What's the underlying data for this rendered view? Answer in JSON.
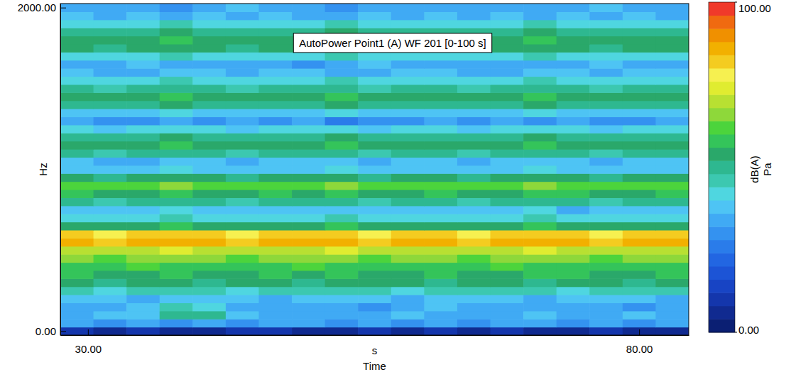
{
  "chart_data": {
    "type": "heatmap",
    "title": "AutoPower Point1 (A) WF 201 [0-100 s]",
    "x_label": "Time",
    "x_unit": "s",
    "y_label": "Hz",
    "x": [
      29,
      32,
      35,
      38,
      41,
      44,
      47,
      50,
      53,
      56,
      59,
      62,
      65,
      68,
      71,
      74,
      77,
      80,
      83
    ],
    "y": [
      0,
      50,
      100,
      150,
      200,
      250,
      300,
      350,
      400,
      450,
      500,
      550,
      600,
      650,
      700,
      750,
      800,
      850,
      900,
      950,
      1000,
      1050,
      1100,
      1150,
      1200,
      1250,
      1300,
      1350,
      1400,
      1450,
      1500,
      1550,
      1600,
      1650,
      1700,
      1750,
      1800,
      1850,
      1900,
      1950,
      2000
    ],
    "z": [
      [
        8,
        6,
        9,
        7,
        5,
        8,
        9,
        6,
        4,
        8,
        7,
        9,
        6,
        8,
        7,
        5,
        8,
        6,
        7
      ],
      [
        33,
        30,
        35,
        31,
        34,
        29,
        33,
        32,
        30,
        35,
        31,
        33,
        30,
        34,
        32,
        31,
        33,
        30,
        32
      ],
      [
        35,
        36,
        38,
        48,
        50,
        36,
        34,
        33,
        35,
        32,
        36,
        34,
        33,
        35,
        37,
        34,
        33,
        36,
        35
      ],
      [
        34,
        33,
        36,
        44,
        42,
        34,
        32,
        35,
        33,
        31,
        34,
        36,
        33,
        32,
        34,
        35,
        33,
        31,
        34
      ],
      [
        37,
        36,
        35,
        38,
        36,
        37,
        35,
        36,
        38,
        36,
        35,
        37,
        36,
        38,
        35,
        36,
        37,
        36,
        35
      ],
      [
        45,
        43,
        46,
        44,
        45,
        43,
        44,
        46,
        45,
        44,
        43,
        45,
        46,
        44,
        45,
        43,
        44,
        45,
        46
      ],
      [
        53,
        50,
        52,
        54,
        51,
        53,
        52,
        50,
        53,
        52,
        54,
        51,
        52,
        53,
        50,
        52,
        53,
        51,
        52
      ],
      [
        56,
        54,
        55,
        57,
        55,
        54,
        56,
        55,
        57,
        54,
        55,
        56,
        54,
        55,
        57,
        56,
        54,
        55,
        56
      ],
      [
        59,
        57,
        60,
        58,
        57,
        59,
        58,
        60,
        57,
        58,
        59,
        57,
        58,
        60,
        58,
        57,
        59,
        58,
        57
      ],
      [
        65,
        63,
        64,
        66,
        64,
        63,
        65,
        64,
        66,
        63,
        64,
        65,
        63,
        64,
        66,
        65,
        63,
        64,
        65
      ],
      [
        71,
        69,
        70,
        72,
        70,
        69,
        71,
        70,
        72,
        69,
        70,
        71,
        69,
        70,
        72,
        71,
        69,
        70,
        71
      ],
      [
        85,
        83,
        84,
        86,
        84,
        83,
        85,
        84,
        86,
        83,
        84,
        85,
        83,
        84,
        86,
        85,
        83,
        84,
        85
      ],
      [
        81,
        79,
        80,
        82,
        80,
        79,
        81,
        80,
        82,
        79,
        80,
        81,
        79,
        80,
        82,
        81,
        79,
        80,
        81
      ],
      [
        55,
        53,
        54,
        56,
        54,
        53,
        55,
        54,
        56,
        53,
        54,
        55,
        53,
        54,
        56,
        55,
        53,
        54,
        55
      ],
      [
        43,
        40,
        41,
        44,
        42,
        40,
        43,
        41,
        44,
        40,
        42,
        43,
        41,
        42,
        44,
        40,
        43,
        41,
        42
      ],
      [
        39,
        37,
        38,
        40,
        38,
        37,
        39,
        38,
        36,
        37,
        38,
        39,
        37,
        38,
        40,
        35,
        37,
        38,
        39
      ],
      [
        49,
        47,
        48,
        50,
        48,
        47,
        49,
        48,
        50,
        47,
        48,
        49,
        47,
        48,
        50,
        49,
        47,
        48,
        49
      ],
      [
        56,
        54,
        55,
        57,
        55,
        54,
        56,
        55,
        57,
        54,
        55,
        56,
        54,
        55,
        57,
        56,
        54,
        55,
        56
      ],
      [
        63,
        61,
        62,
        64,
        62,
        61,
        63,
        62,
        64,
        61,
        62,
        63,
        61,
        62,
        64,
        63,
        61,
        62,
        63
      ],
      [
        53,
        51,
        52,
        54,
        52,
        51,
        53,
        52,
        54,
        51,
        52,
        53,
        51,
        52,
        54,
        53,
        51,
        52,
        53
      ],
      [
        39,
        36,
        38,
        40,
        37,
        36,
        39,
        38,
        40,
        36,
        38,
        39,
        36,
        38,
        40,
        39,
        36,
        38,
        39
      ],
      [
        37,
        35,
        34,
        38,
        36,
        35,
        37,
        36,
        38,
        35,
        36,
        37,
        35,
        36,
        38,
        37,
        35,
        36,
        37
      ],
      [
        49,
        47,
        48,
        50,
        48,
        47,
        49,
        48,
        50,
        47,
        48,
        49,
        47,
        48,
        50,
        49,
        47,
        48,
        49
      ],
      [
        55,
        53,
        54,
        56,
        54,
        53,
        55,
        54,
        56,
        53,
        54,
        55,
        53,
        54,
        56,
        55,
        53,
        54,
        55
      ],
      [
        51,
        49,
        50,
        52,
        50,
        49,
        51,
        50,
        52,
        49,
        50,
        51,
        49,
        50,
        52,
        51,
        49,
        50,
        51
      ],
      [
        41,
        39,
        40,
        42,
        40,
        39,
        41,
        40,
        42,
        39,
        40,
        41,
        39,
        40,
        42,
        41,
        39,
        40,
        41
      ],
      [
        33,
        31,
        28,
        34,
        30,
        32,
        29,
        33,
        27,
        31,
        30,
        34,
        28,
        32,
        30,
        33,
        29,
        31,
        32
      ],
      [
        39,
        37,
        38,
        40,
        38,
        37,
        39,
        38,
        40,
        37,
        38,
        39,
        37,
        38,
        40,
        39,
        37,
        38,
        39
      ],
      [
        51,
        49,
        50,
        52,
        50,
        49,
        51,
        50,
        52,
        49,
        50,
        51,
        49,
        50,
        52,
        51,
        49,
        50,
        51
      ],
      [
        55,
        53,
        54,
        56,
        54,
        53,
        55,
        54,
        56,
        53,
        54,
        55,
        53,
        54,
        56,
        55,
        53,
        54,
        55
      ],
      [
        49,
        47,
        48,
        50,
        48,
        47,
        49,
        48,
        50,
        47,
        48,
        49,
        47,
        48,
        50,
        49,
        47,
        48,
        49
      ],
      [
        43,
        41,
        42,
        44,
        42,
        41,
        43,
        42,
        44,
        41,
        42,
        43,
        41,
        42,
        44,
        43,
        41,
        42,
        43
      ],
      [
        37,
        35,
        34,
        38,
        36,
        33,
        37,
        36,
        35,
        34,
        36,
        37,
        35,
        33,
        38,
        37,
        34,
        36,
        37
      ],
      [
        35,
        33,
        36,
        32,
        34,
        35,
        33,
        31,
        34,
        36,
        33,
        35,
        32,
        34,
        33,
        35,
        36,
        33,
        34
      ],
      [
        43,
        41,
        42,
        44,
        42,
        41,
        43,
        42,
        44,
        41,
        42,
        43,
        41,
        42,
        44,
        43,
        41,
        42,
        43
      ],
      [
        53,
        51,
        52,
        54,
        52,
        51,
        53,
        52,
        54,
        51,
        52,
        53,
        51,
        52,
        54,
        53,
        51,
        52,
        53
      ],
      [
        55,
        53,
        54,
        56,
        54,
        53,
        55,
        54,
        56,
        53,
        54,
        55,
        53,
        54,
        56,
        55,
        53,
        54,
        55
      ],
      [
        51,
        49,
        50,
        52,
        50,
        49,
        51,
        50,
        52,
        49,
        50,
        51,
        49,
        50,
        52,
        51,
        49,
        50,
        51
      ],
      [
        43,
        41,
        42,
        44,
        42,
        41,
        43,
        42,
        44,
        41,
        42,
        43,
        41,
        42,
        44,
        43,
        41,
        42,
        43
      ],
      [
        37,
        35,
        36,
        33,
        36,
        34,
        37,
        32,
        35,
        36,
        34,
        37,
        33,
        36,
        35,
        37,
        34,
        36,
        35
      ],
      [
        35,
        33,
        34,
        31,
        34,
        36,
        33,
        34,
        30,
        35,
        33,
        34,
        32,
        35,
        33,
        34,
        36,
        33,
        34
      ]
    ],
    "xlim": [
      27.5,
      84.5
    ],
    "ylim": [
      -25,
      2025
    ],
    "xticks": [
      {
        "value": 30,
        "label": "30.00"
      },
      {
        "value": 80,
        "label": "80.00"
      }
    ],
    "yticks": [
      {
        "value": 0,
        "label": "0.00"
      },
      {
        "value": 2000,
        "label": "2000.00"
      }
    ],
    "colorbar": {
      "range": [
        0,
        100
      ],
      "ticks": [
        {
          "value": 0,
          "label": "0.00"
        },
        {
          "value": 100,
          "label": "100.00"
        }
      ],
      "label": "dB(A)",
      "unit": "Pa",
      "colors": [
        "#0b1f73",
        "#102a90",
        "#1436ac",
        "#1844c4",
        "#1c54d6",
        "#2266e2",
        "#2a7cea",
        "#3492f0",
        "#40aaf4",
        "#4ec4f4",
        "#4fd6e0",
        "#3cc8b0",
        "#2eb890",
        "#2aa86a",
        "#34c45a",
        "#4cd43c",
        "#8ed83a",
        "#b8e032",
        "#e0ec30",
        "#f6f050",
        "#f4cc20",
        "#f2b000",
        "#f09000",
        "#f06a10",
        "#f03a2a"
      ]
    }
  }
}
